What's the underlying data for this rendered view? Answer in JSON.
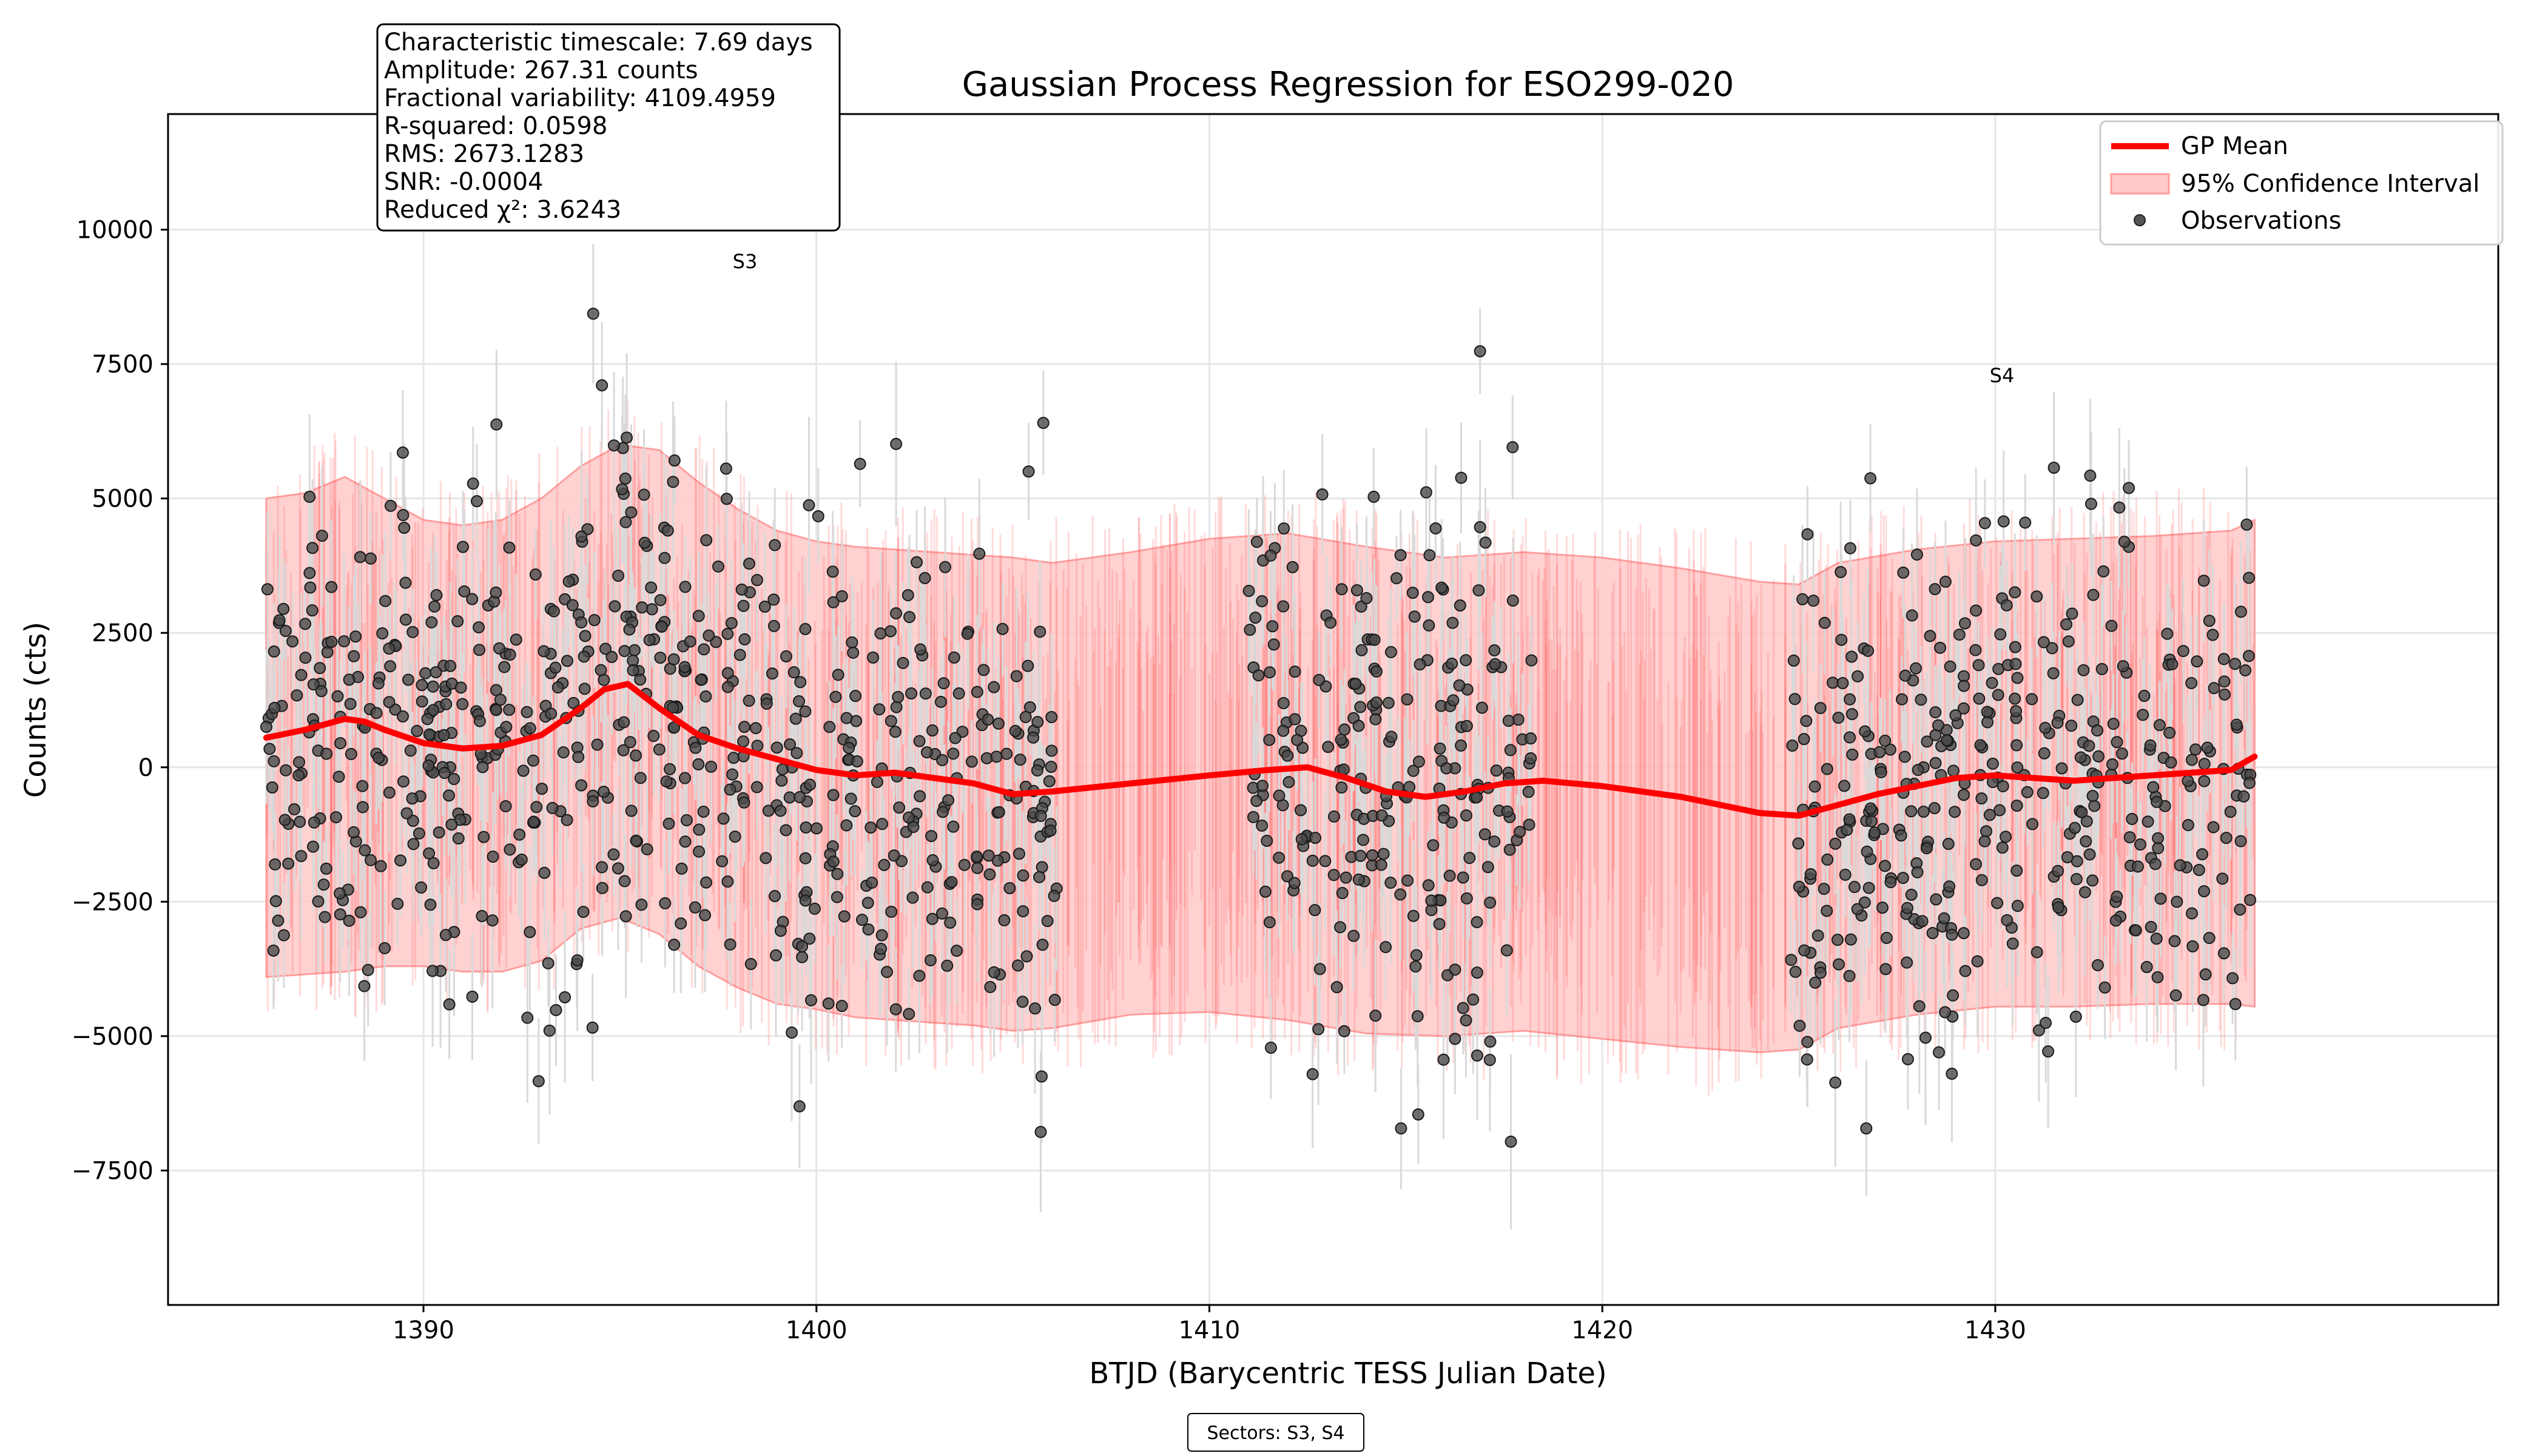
{
  "chart_data": {
    "type": "scatter",
    "title": "Gaussian Process Regression for ESO299-020",
    "xlabel": "BTJD (Barycentric TESS Julian Date)",
    "ylabel": "Counts (cts)",
    "xlim": [
      1383.5,
      1442.8
    ],
    "ylim": [
      -10000,
      12150
    ],
    "x_ticks": [
      1390,
      1400,
      1410,
      1420,
      1430
    ],
    "x_tick_labels": [
      "1390",
      "1400",
      "1410",
      "1420",
      "1430"
    ],
    "y_ticks": [
      -7500,
      -5000,
      -2500,
      0,
      2500,
      5000,
      7500,
      10000
    ],
    "y_tick_labels": [
      "−7500",
      "−5000",
      "−2500",
      "0",
      "2500",
      "5000",
      "7500",
      "10000"
    ],
    "grid": true,
    "legend": {
      "position": "top-right",
      "entries": [
        "GP Mean",
        "95% Confidence Interval",
        "Observations"
      ]
    },
    "colors": {
      "gp_mean": "#ff0000",
      "confidence_fill": "#ffc9c9",
      "confidence_edge": "#ff9d9d",
      "observations": "#333333",
      "errorbars": "#d9d9d9",
      "grid": "#e6e6e6"
    },
    "stats_box": [
      "Characteristic timescale: 7.69 days",
      "Amplitude: 267.31 counts",
      "Fractional variability: 4109.4959",
      "R-squared: 0.0598",
      "RMS: 2673.1283",
      "SNR: -0.0004",
      "Reduced χ²: 3.6243"
    ],
    "sector_annotations": [
      {
        "label": "S3",
        "x": 1397.0,
        "y": 9400
      },
      {
        "label": "S4",
        "x": 1426.7,
        "y": 7300
      }
    ],
    "footer_note": "Sectors: S3, S4",
    "observation_segments": [
      [
        1386.0,
        1406.2
      ],
      [
        1411.0,
        1418.2
      ],
      [
        1424.8,
        1436.6
      ]
    ],
    "observation_count_approx": 1300,
    "observation_error_typical": 1100,
    "gp_mean": {
      "x": [
        1386,
        1387,
        1388,
        1388.5,
        1389,
        1390,
        1391,
        1392,
        1393,
        1394,
        1394.6,
        1395.2,
        1396,
        1397,
        1398,
        1399,
        1400,
        1401,
        1402,
        1403,
        1404,
        1405,
        1406,
        1408,
        1410,
        1411.5,
        1412.5,
        1413.5,
        1414.5,
        1415.5,
        1416.5,
        1417.5,
        1418.5,
        1420,
        1422,
        1424,
        1425,
        1426,
        1427,
        1428,
        1429,
        1430,
        1431,
        1432,
        1433,
        1434,
        1435,
        1436,
        1436.6
      ],
      "y": [
        550,
        700,
        900,
        850,
        700,
        450,
        350,
        400,
        600,
        1100,
        1450,
        1550,
        1100,
        600,
        350,
        150,
        -50,
        -150,
        -100,
        -200,
        -300,
        -500,
        -450,
        -300,
        -150,
        -50,
        0,
        -200,
        -450,
        -550,
        -450,
        -300,
        -250,
        -350,
        -550,
        -850,
        -900,
        -700,
        -500,
        -350,
        -200,
        -150,
        -200,
        -250,
        -200,
        -150,
        -100,
        -50,
        200
      ]
    },
    "ci_upper": {
      "x": [
        1386,
        1387,
        1388,
        1389,
        1390,
        1391,
        1392,
        1393,
        1394,
        1395,
        1396,
        1397,
        1398,
        1399,
        1400,
        1401,
        1402,
        1403,
        1404,
        1405,
        1406,
        1408,
        1410,
        1412,
        1414,
        1416,
        1418,
        1420,
        1422,
        1424,
        1425,
        1426,
        1428,
        1430,
        1432,
        1434,
        1436,
        1436.6
      ],
      "y": [
        5000,
        5100,
        5400,
        5000,
        4600,
        4500,
        4600,
        5000,
        5600,
        6000,
        5900,
        5300,
        4800,
        4400,
        4200,
        4100,
        4050,
        4000,
        3950,
        3900,
        3800,
        4000,
        4250,
        4350,
        4100,
        3900,
        4000,
        3900,
        3700,
        3450,
        3400,
        3800,
        4050,
        4200,
        4250,
        4300,
        4400,
        4600
      ]
    },
    "ci_lower": {
      "x": [
        1386,
        1387,
        1388,
        1389,
        1390,
        1391,
        1392,
        1393,
        1394,
        1395,
        1396,
        1397,
        1398,
        1399,
        1400,
        1401,
        1402,
        1403,
        1404,
        1405,
        1406,
        1408,
        1410,
        1412,
        1414,
        1416,
        1418,
        1420,
        1422,
        1424,
        1425,
        1426,
        1428,
        1430,
        1432,
        1434,
        1436,
        1436.6
      ],
      "y": [
        -3900,
        -3850,
        -3800,
        -3700,
        -3700,
        -3800,
        -3800,
        -3600,
        -3000,
        -2800,
        -3100,
        -3700,
        -4100,
        -4400,
        -4500,
        -4650,
        -4700,
        -4750,
        -4800,
        -4900,
        -4850,
        -4600,
        -4550,
        -4700,
        -4950,
        -5000,
        -4900,
        -5050,
        -5200,
        -5300,
        -5250,
        -4850,
        -4600,
        -4450,
        -4450,
        -4400,
        -4400,
        -4450
      ]
    }
  }
}
